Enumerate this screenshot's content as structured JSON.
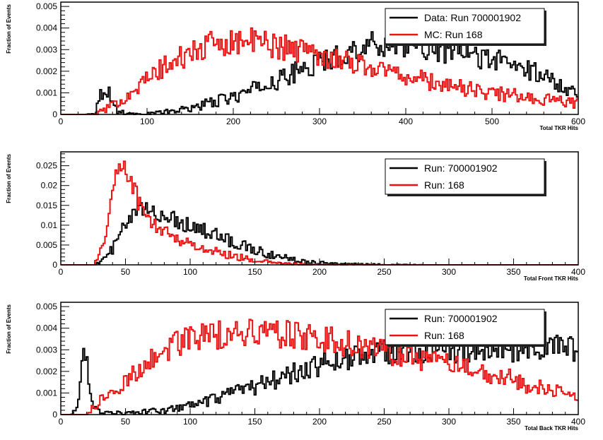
{
  "colors": {
    "data": "#000000",
    "mc": "#ee1111",
    "frame": "#000000",
    "legend_shadow": "#222222",
    "background": "#ffffff"
  },
  "chart_data": [
    {
      "type": "line",
      "xlabel": "Total TKR Hits",
      "ylabel": "Fraction of Events",
      "xlim": [
        0,
        600
      ],
      "ylim": [
        0,
        0.0052
      ],
      "xticks": [
        {
          "value": 0,
          "label": "0"
        },
        {
          "value": 100,
          "label": "100"
        },
        {
          "value": 200,
          "label": "200"
        },
        {
          "value": 300,
          "label": "300"
        },
        {
          "value": 400,
          "label": "400"
        },
        {
          "value": 500,
          "label": "500"
        },
        {
          "value": 600,
          "label": "600"
        }
      ],
      "yticks": [
        {
          "value": 0,
          "label": "0"
        },
        {
          "value": 0.001,
          "label": "0.001"
        },
        {
          "value": 0.002,
          "label": "0.002"
        },
        {
          "value": 0.003,
          "label": "0.003"
        },
        {
          "value": 0.004,
          "label": "0.004"
        },
        {
          "value": 0.005,
          "label": "0.005"
        }
      ],
      "legend_position": "top-right",
      "series": [
        {
          "name": "Data: Run 700001902",
          "color": "#000000",
          "x": [
            0,
            30,
            40,
            45,
            50,
            55,
            60,
            65,
            70,
            80,
            90,
            100,
            120,
            140,
            160,
            180,
            200,
            220,
            240,
            260,
            280,
            300,
            320,
            340,
            360,
            380,
            400,
            420,
            440,
            460,
            480,
            500,
            520,
            540,
            560,
            580,
            600
          ],
          "y": [
            0,
            0,
            0.0001,
            0.0008,
            0.0012,
            0.0011,
            0.0006,
            0.0002,
            0.0001,
            5e-05,
            0,
            5e-05,
            0.0001,
            0.0002,
            0.0004,
            0.0006,
            0.0008,
            0.0011,
            0.0014,
            0.0017,
            0.0021,
            0.0024,
            0.0027,
            0.003,
            0.0032,
            0.0033,
            0.0033,
            0.0032,
            0.003,
            0.0029,
            0.0027,
            0.0026,
            0.0023,
            0.0021,
            0.0018,
            0.0014,
            0.001
          ]
        },
        {
          "name": "MC: Run 168",
          "color": "#ee1111",
          "x": [
            0,
            40,
            50,
            60,
            70,
            80,
            90,
            100,
            110,
            120,
            140,
            160,
            180,
            200,
            220,
            240,
            260,
            280,
            300,
            320,
            340,
            360,
            380,
            400,
            420,
            440,
            460,
            480,
            500,
            520,
            540,
            560,
            580,
            600
          ],
          "y": [
            0,
            0,
            0.0002,
            0.0004,
            0.0007,
            0.001,
            0.0013,
            0.0016,
            0.0019,
            0.0022,
            0.0026,
            0.003,
            0.0033,
            0.0034,
            0.0034,
            0.0033,
            0.0031,
            0.003,
            0.0028,
            0.0026,
            0.0024,
            0.0022,
            0.002,
            0.0018,
            0.0016,
            0.0014,
            0.0013,
            0.0011,
            0.001,
            0.0009,
            0.0008,
            0.0007,
            0.0006,
            0.0005
          ]
        }
      ]
    },
    {
      "type": "line",
      "xlabel": "Total Front TKR Hits",
      "ylabel": "Fraction of Events",
      "xlim": [
        0,
        400
      ],
      "ylim": [
        0,
        0.0285
      ],
      "xticks": [
        {
          "value": 0,
          "label": "0"
        },
        {
          "value": 50,
          "label": "50"
        },
        {
          "value": 100,
          "label": "100"
        },
        {
          "value": 150,
          "label": "150"
        },
        {
          "value": 200,
          "label": "200"
        },
        {
          "value": 250,
          "label": "250"
        },
        {
          "value": 300,
          "label": "300"
        },
        {
          "value": 350,
          "label": "350"
        },
        {
          "value": 400,
          "label": "400"
        }
      ],
      "yticks": [
        {
          "value": 0,
          "label": "0"
        },
        {
          "value": 0.005,
          "label": "0.005"
        },
        {
          "value": 0.01,
          "label": "0.01"
        },
        {
          "value": 0.015,
          "label": "0.015"
        },
        {
          "value": 0.02,
          "label": "0.02"
        },
        {
          "value": 0.025,
          "label": "0.025"
        }
      ],
      "legend_position": "top-right",
      "series": [
        {
          "name": "Run: 700001902",
          "color": "#000000",
          "x": [
            0,
            25,
            30,
            35,
            40,
            45,
            50,
            55,
            60,
            65,
            70,
            80,
            90,
            100,
            110,
            120,
            130,
            140,
            150,
            160,
            170,
            180,
            190,
            200,
            210,
            220,
            240,
            260,
            280,
            300,
            400
          ],
          "y": [
            0,
            0,
            0.0005,
            0.002,
            0.004,
            0.007,
            0.01,
            0.012,
            0.0135,
            0.0138,
            0.0135,
            0.0125,
            0.0112,
            0.01,
            0.0088,
            0.0075,
            0.0062,
            0.005,
            0.0038,
            0.0028,
            0.002,
            0.0013,
            0.0009,
            0.0006,
            0.0004,
            0.0002,
            0.0001,
            5e-05,
            0,
            0,
            0
          ]
        },
        {
          "name": "Run: 168",
          "color": "#ee1111",
          "x": [
            0,
            25,
            30,
            35,
            40,
            45,
            48,
            50,
            55,
            60,
            65,
            70,
            80,
            90,
            100,
            110,
            120,
            130,
            140,
            150,
            160,
            170,
            180,
            190,
            200,
            250,
            400
          ],
          "y": [
            0,
            0,
            0.002,
            0.009,
            0.018,
            0.025,
            0.026,
            0.024,
            0.021,
            0.016,
            0.0125,
            0.0105,
            0.0085,
            0.0067,
            0.0052,
            0.0042,
            0.0033,
            0.0025,
            0.0018,
            0.0012,
            0.0007,
            0.0004,
            0.0002,
            0.0001,
            5e-05,
            0,
            0
          ]
        }
      ]
    },
    {
      "type": "line",
      "xlabel": "Total Back TKR Hits",
      "ylabel": "Fraction of Events",
      "xlim": [
        0,
        400
      ],
      "ylim": [
        0,
        0.0052
      ],
      "xticks": [
        {
          "value": 0,
          "label": "0"
        },
        {
          "value": 50,
          "label": "50"
        },
        {
          "value": 100,
          "label": "100"
        },
        {
          "value": 150,
          "label": "150"
        },
        {
          "value": 200,
          "label": "200"
        },
        {
          "value": 250,
          "label": "250"
        },
        {
          "value": 300,
          "label": "300"
        },
        {
          "value": 350,
          "label": "350"
        },
        {
          "value": 400,
          "label": "400"
        }
      ],
      "yticks": [
        {
          "value": 0,
          "label": "0"
        },
        {
          "value": 0.001,
          "label": "0.001"
        },
        {
          "value": 0.002,
          "label": "0.002"
        },
        {
          "value": 0.003,
          "label": "0.003"
        },
        {
          "value": 0.004,
          "label": "0.004"
        },
        {
          "value": 0.005,
          "label": "0.005"
        }
      ],
      "legend_position": "top-right",
      "series": [
        {
          "name": "Run: 700001902",
          "color": "#000000",
          "x": [
            0,
            8,
            12,
            15,
            18,
            20,
            22,
            25,
            30,
            40,
            50,
            60,
            80,
            100,
            120,
            140,
            160,
            180,
            200,
            220,
            240,
            260,
            280,
            300,
            320,
            340,
            360,
            380,
            400
          ],
          "y": [
            0,
            0,
            0.0002,
            0.0015,
            0.003,
            0.0025,
            0.001,
            0.0003,
            0.00015,
            0.0001,
            5e-05,
            0.0001,
            0.0002,
            0.0004,
            0.0007,
            0.0011,
            0.0015,
            0.0019,
            0.0023,
            0.0026,
            0.0028,
            0.003,
            0.003,
            0.0029,
            0.0029,
            0.003,
            0.003,
            0.0031,
            0.003
          ]
        },
        {
          "name": "Run: 168",
          "color": "#ee1111",
          "x": [
            0,
            20,
            25,
            30,
            40,
            50,
            60,
            70,
            80,
            90,
            100,
            120,
            140,
            160,
            180,
            200,
            220,
            240,
            260,
            280,
            300,
            320,
            340,
            360,
            380,
            400
          ],
          "y": [
            0,
            0,
            0.0003,
            0.0006,
            0.001,
            0.0015,
            0.0021,
            0.0026,
            0.003,
            0.0033,
            0.0035,
            0.0037,
            0.0038,
            0.0038,
            0.0037,
            0.0035,
            0.0033,
            0.003,
            0.0028,
            0.0026,
            0.0023,
            0.0021,
            0.0018,
            0.0014,
            0.0011,
            0.0008
          ]
        }
      ]
    }
  ]
}
